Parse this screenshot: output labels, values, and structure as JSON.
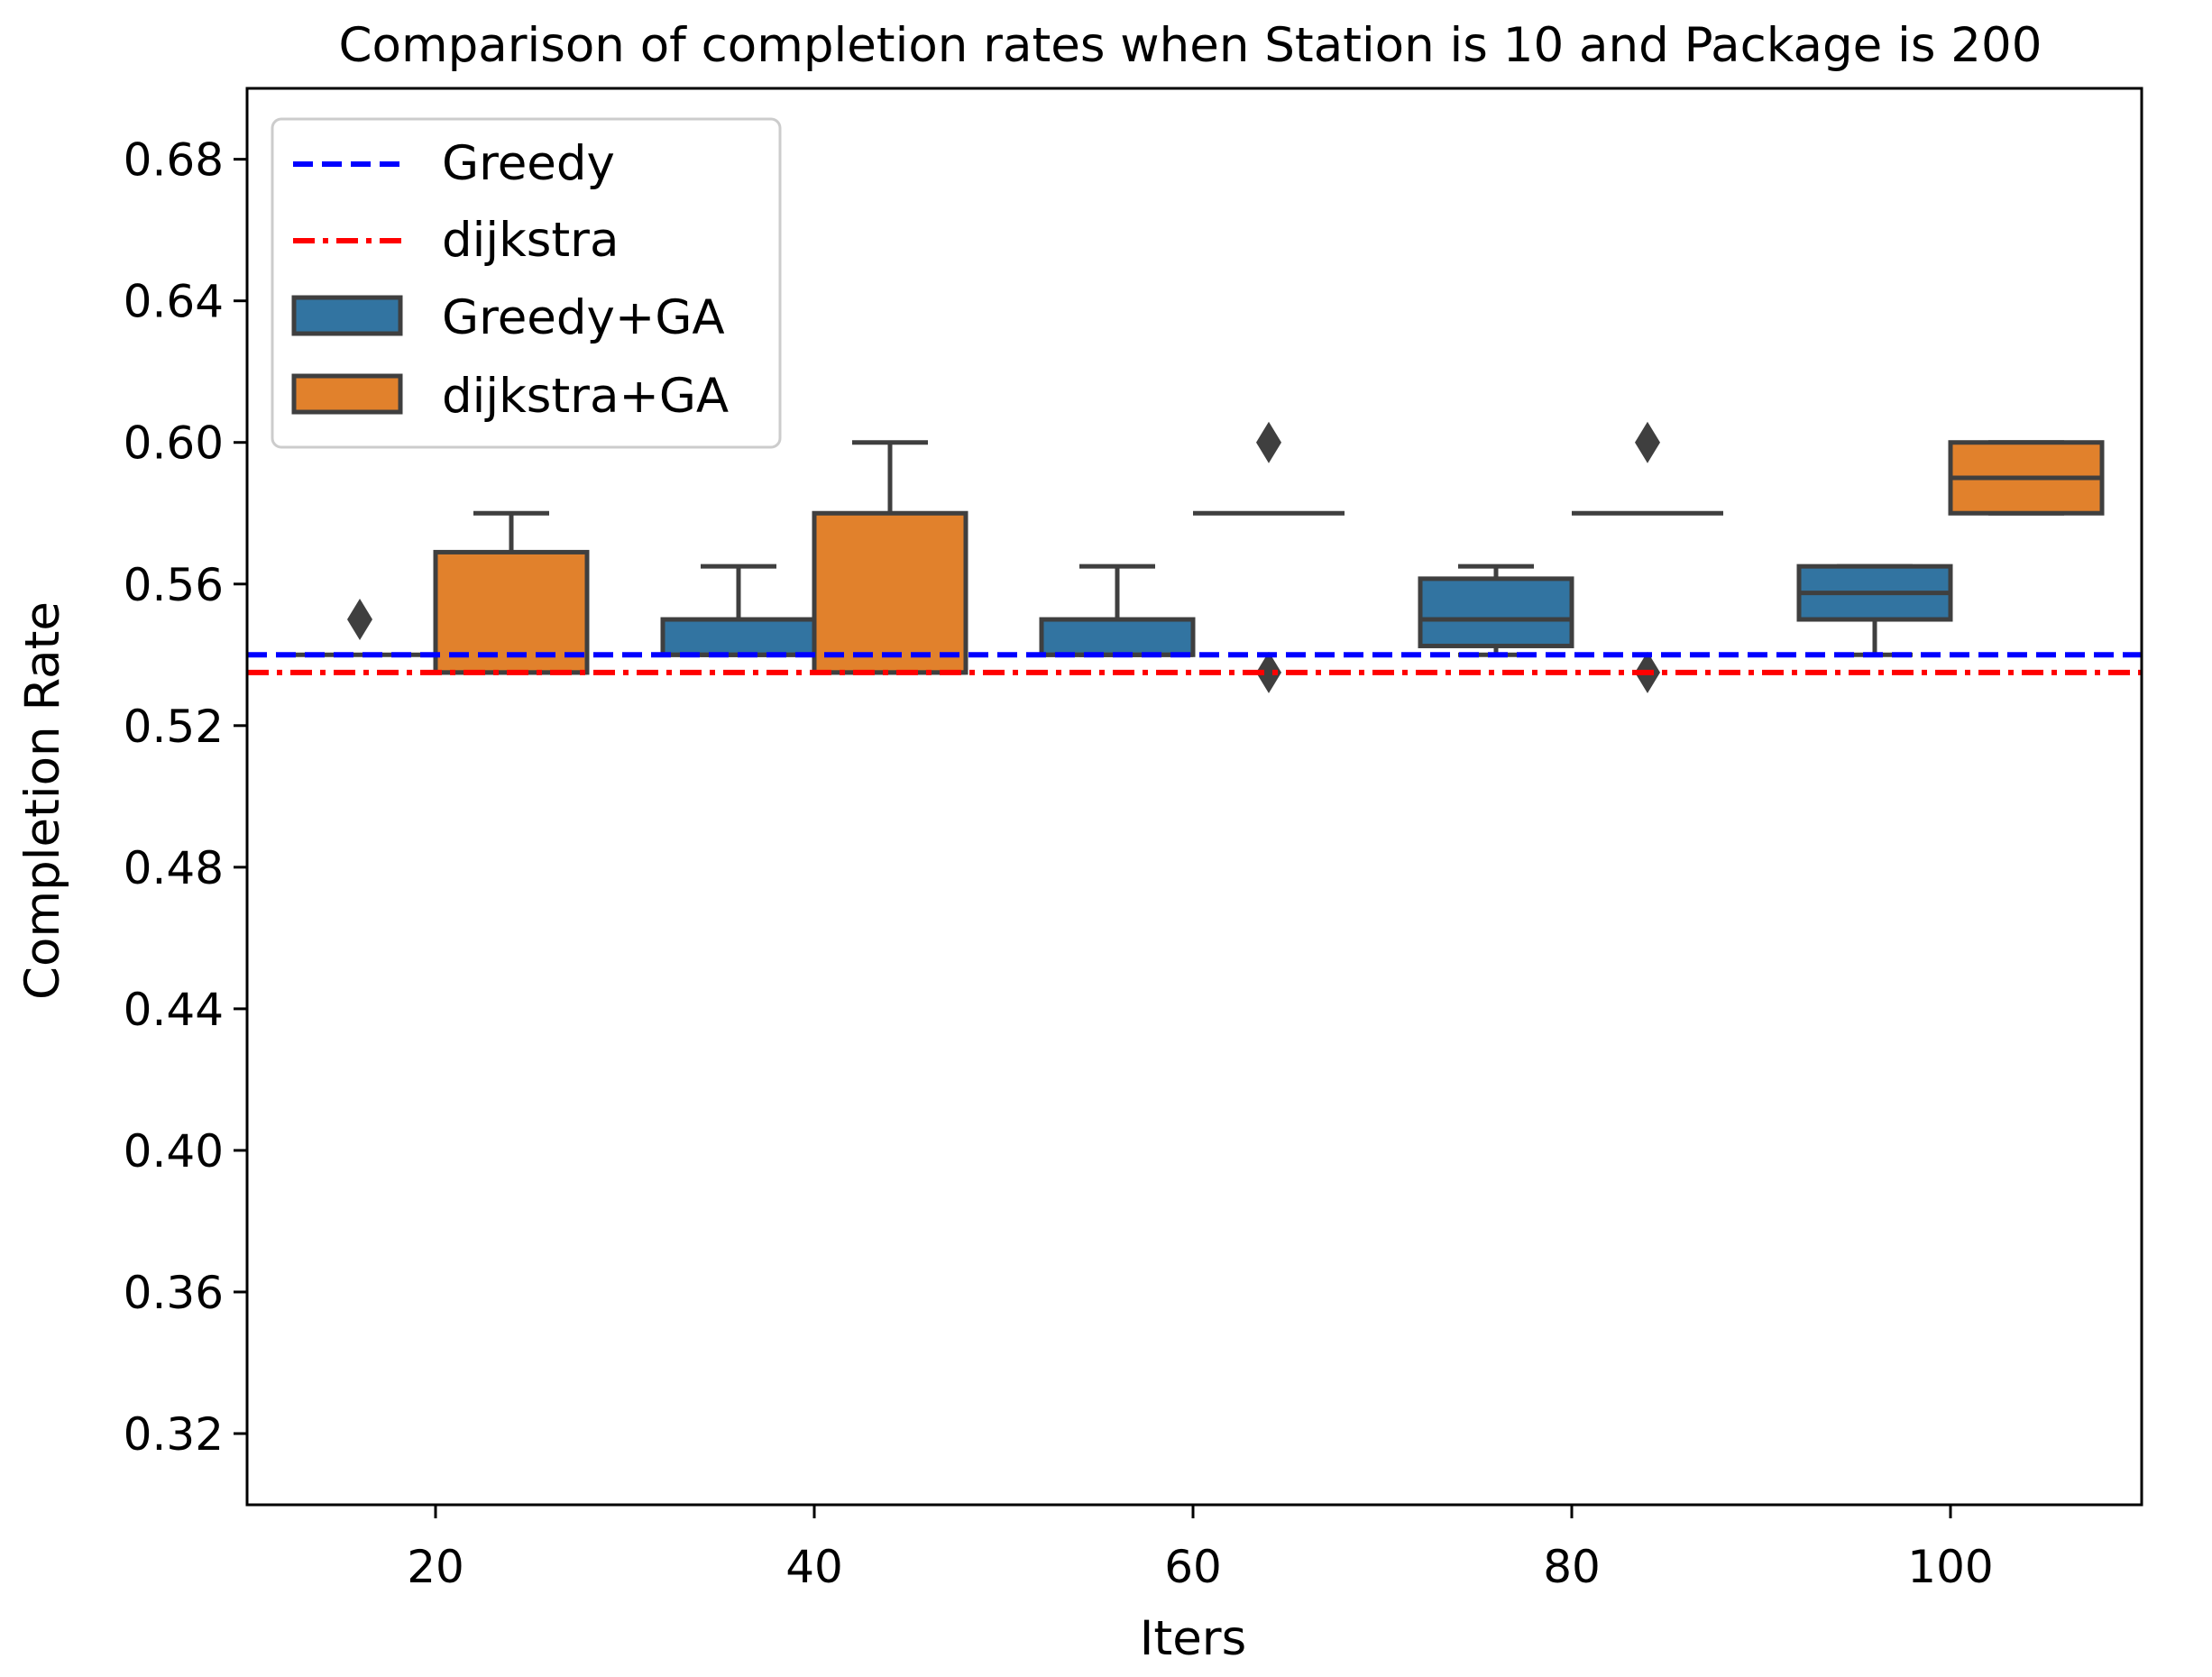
{
  "chart_data": {
    "type": "box",
    "title": "Comparison of completion rates when Station is 10 and Package is 200",
    "xlabel": "Iters",
    "ylabel": "Completion Rate",
    "ylim": [
      0.3,
      0.7
    ],
    "yticks": [
      0.32,
      0.36,
      0.4,
      0.44,
      0.48,
      0.52,
      0.56,
      0.6,
      0.64,
      0.68
    ],
    "ytick_labels": [
      "0.32",
      "0.36",
      "0.40",
      "0.44",
      "0.48",
      "0.52",
      "0.56",
      "0.60",
      "0.64",
      "0.68"
    ],
    "categories": [
      "20",
      "40",
      "60",
      "80",
      "100"
    ],
    "legend_position": "top-left",
    "reference_lines": [
      {
        "name": "Greedy",
        "value": 0.54,
        "color": "#0000ff",
        "style": "dashed"
      },
      {
        "name": "dijkstra",
        "value": 0.535,
        "color": "#ff0000",
        "style": "dashdot"
      }
    ],
    "series": [
      {
        "name": "Greedy+GA",
        "color": "#3274a1",
        "boxes": [
          {
            "category": "20",
            "whisker_low": 0.54,
            "q1": 0.54,
            "median": 0.54,
            "q3": 0.54,
            "whisker_high": 0.54,
            "outliers": [
              0.55
            ]
          },
          {
            "category": "40",
            "whisker_low": 0.54,
            "q1": 0.54,
            "median": 0.54,
            "q3": 0.55,
            "whisker_high": 0.565,
            "outliers": []
          },
          {
            "category": "60",
            "whisker_low": 0.54,
            "q1": 0.54,
            "median": 0.54,
            "q3": 0.55,
            "whisker_high": 0.565,
            "outliers": []
          },
          {
            "category": "80",
            "whisker_low": 0.54,
            "q1": 0.5425,
            "median": 0.55,
            "q3": 0.5615,
            "whisker_high": 0.565,
            "outliers": []
          },
          {
            "category": "100",
            "whisker_low": 0.54,
            "q1": 0.55,
            "median": 0.5575,
            "q3": 0.565,
            "whisker_high": 0.565,
            "outliers": []
          }
        ]
      },
      {
        "name": "dijkstra+GA",
        "color": "#e1812c",
        "boxes": [
          {
            "category": "20",
            "whisker_low": 0.535,
            "q1": 0.535,
            "median": 0.535,
            "q3": 0.569,
            "whisker_high": 0.58,
            "outliers": []
          },
          {
            "category": "40",
            "whisker_low": 0.535,
            "q1": 0.535,
            "median": 0.535,
            "q3": 0.58,
            "whisker_high": 0.6,
            "outliers": []
          },
          {
            "category": "60",
            "whisker_low": 0.58,
            "q1": 0.58,
            "median": 0.58,
            "q3": 0.58,
            "whisker_high": 0.58,
            "outliers": [
              0.6,
              0.535
            ]
          },
          {
            "category": "80",
            "whisker_low": 0.58,
            "q1": 0.58,
            "median": 0.58,
            "q3": 0.58,
            "whisker_high": 0.58,
            "outliers": [
              0.6,
              0.535
            ]
          },
          {
            "category": "100",
            "whisker_low": 0.58,
            "q1": 0.58,
            "median": 0.59,
            "q3": 0.6,
            "whisker_high": 0.6,
            "outliers": []
          }
        ]
      }
    ]
  }
}
